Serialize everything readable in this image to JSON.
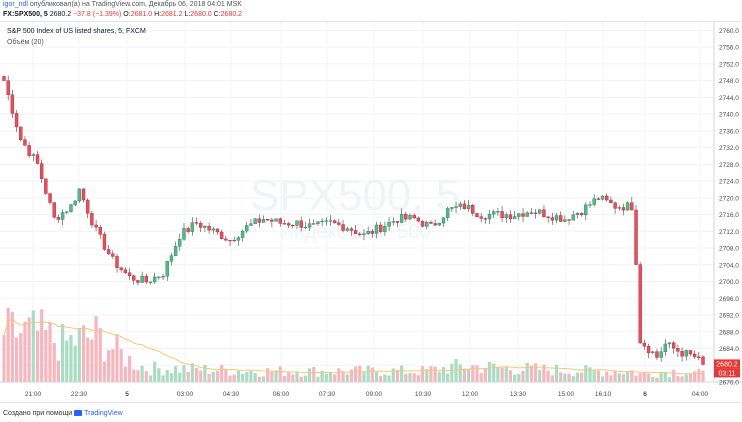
{
  "header": {
    "username": "igor_ndl",
    "published_text": " опубликовал(а) на TradingView.com, Декабрь 06, 2018 04:01 MSK",
    "symbol": "FX:SPX500, 5",
    "last": "2680.2",
    "change": "−37.8 (−1.39%)",
    "o_label": "O:",
    "o": "2681.0",
    "h_label": "H:",
    "h": "2681.2",
    "l_label": "L:",
    "l": "2680.0",
    "c_label": "C:",
    "c": "2680.2"
  },
  "legend": {
    "title": "S&P 500 Index of US listed shares, 5, FXCM",
    "volume_label": "Объём (20)"
  },
  "watermark": {
    "symbol": "SPX500, 5",
    "name": "Индекс S&P 500"
  },
  "price_badge": {
    "price": "2680.2",
    "countdown": "03:11"
  },
  "footer": {
    "credit": "Создано при помощи ",
    "brand": "TradingView"
  },
  "chart_data": {
    "type": "candlestick",
    "y_axis": {
      "range": [
        2676,
        2762
      ],
      "ticks": [
        "2760.0",
        "2756.0",
        "2752.0",
        "2748.0",
        "2744.0",
        "2740.0",
        "2736.0",
        "2732.0",
        "2728.0",
        "2724.0",
        "2720.0",
        "2716.0",
        "2712.0",
        "2708.0",
        "2704.0",
        "2700.0",
        "2696.0",
        "2692.0",
        "2688.0",
        "2684.0",
        "2680.0",
        "2676.0"
      ]
    },
    "x_axis": {
      "ticks": [
        "21:00",
        "22:30",
        "5",
        "03:00",
        "04:30",
        "06:00",
        "07:30",
        "09:00",
        "10:30",
        "12:00",
        "13:30",
        "15:00",
        "16:10",
        "6",
        "04:00"
      ]
    },
    "colors": {
      "up": "#53b987",
      "down": "#eb4d5c",
      "ma": "#f5c77a"
    },
    "volume_ma_period": 20,
    "price_path": [
      [
        0,
        2748
      ],
      [
        4,
        2734
      ],
      [
        8,
        2728
      ],
      [
        12,
        2715
      ],
      [
        16,
        2718
      ],
      [
        18,
        2722
      ],
      [
        22,
        2712
      ],
      [
        26,
        2705
      ],
      [
        30,
        2701
      ],
      [
        34,
        2700
      ],
      [
        38,
        2702
      ],
      [
        42,
        2711
      ],
      [
        46,
        2714
      ],
      [
        50,
        2712
      ],
      [
        54,
        2710
      ],
      [
        58,
        2713
      ],
      [
        62,
        2715
      ],
      [
        66,
        2714
      ],
      [
        70,
        2714
      ],
      [
        74,
        2713
      ],
      [
        78,
        2714
      ],
      [
        82,
        2713
      ],
      [
        86,
        2711
      ],
      [
        90,
        2713
      ],
      [
        94,
        2715
      ],
      [
        98,
        2715
      ],
      [
        102,
        2713
      ],
      [
        106,
        2717
      ],
      [
        110,
        2718
      ],
      [
        114,
        2716
      ],
      [
        118,
        2716
      ],
      [
        122,
        2716
      ],
      [
        126,
        2717
      ],
      [
        130,
        2716
      ],
      [
        134,
        2715
      ],
      [
        138,
        2717
      ],
      [
        142,
        2720
      ],
      [
        146,
        2718
      ],
      [
        150,
        2718
      ],
      [
        151,
        2705
      ],
      [
        152,
        2686
      ],
      [
        156,
        2682
      ],
      [
        158,
        2685
      ],
      [
        160,
        2684
      ],
      [
        162,
        2683
      ],
      [
        165,
        2682
      ],
      [
        167,
        2680.2
      ]
    ],
    "volume_profile": [
      [
        0,
        18
      ],
      [
        8,
        18
      ],
      [
        14,
        14
      ],
      [
        22,
        17
      ],
      [
        30,
        8
      ],
      [
        34,
        5
      ],
      [
        40,
        5
      ],
      [
        60,
        4
      ],
      [
        80,
        4
      ],
      [
        100,
        4
      ],
      [
        110,
        6
      ],
      [
        120,
        5
      ],
      [
        140,
        4
      ],
      [
        150,
        4
      ],
      [
        152,
        3
      ],
      [
        160,
        4
      ],
      [
        167,
        3
      ]
    ]
  }
}
